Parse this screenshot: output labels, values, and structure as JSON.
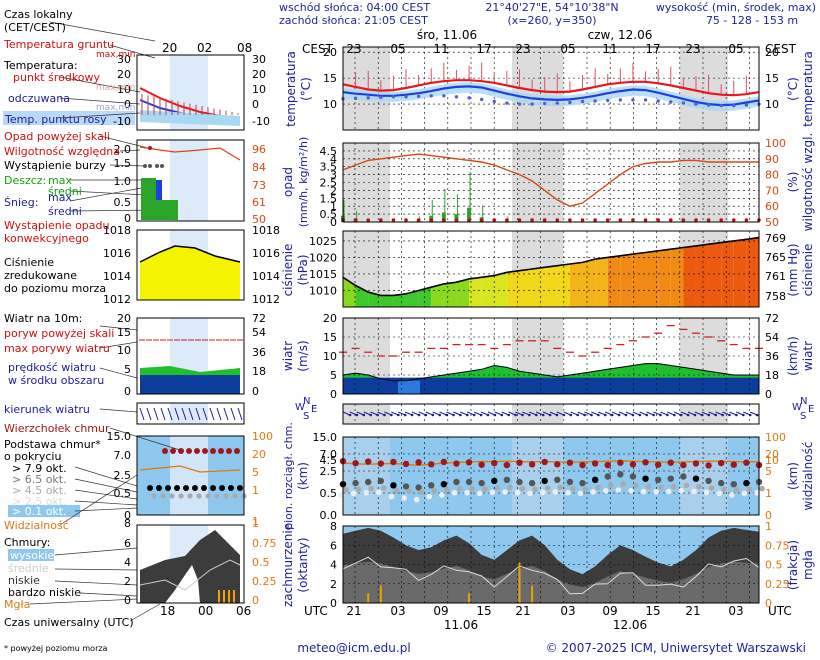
{
  "header": {
    "sunrise": "wschód słońca: 04:00 CEST",
    "sunset": "zachód słońca: 21:05 CEST",
    "coords": "21°40'27\"E, 54°10'38\"N",
    "grid": "(x=260, y=350)",
    "elev_title": "wysokość (min, środek, max)",
    "elev_values": "75 - 128 - 153 m"
  },
  "legend": {
    "local_time": "Czas lokalny",
    "local_time_sub": "(CET/CEST)",
    "soil_temp": "Temperatura gruntu",
    "soil_temp_sub": "max,min",
    "temperature": "Temperatura:",
    "center_point": "punkt środkowy",
    "center_sub": "max,min",
    "perceived": "odczuwana",
    "perceived_sub": "max,min",
    "dew_point": "Temp. punktu rosy",
    "precip_over": "Opad powyżej skali",
    "humidity": "Wilgotność względna",
    "storm": "Wystąpienie burzy",
    "rain": "Deszcz:",
    "rain_max": "max",
    "rain_mean": "średni",
    "snow": "Śnieg:",
    "snow_max": "max",
    "snow_mean": "średni",
    "convective": "Wystąpienie opadu",
    "convective2": "konwekcyjnego",
    "pressure1": "Ciśnienie",
    "pressure2": "zredukowane",
    "pressure3": "do poziomu morza",
    "wind_10m": "Wiatr na 10m:",
    "gust_over": "poryw powyżej skali",
    "max_gust": "max porywy wiatru",
    "wind_speed": "prędkość wiatru",
    "wind_speed2": "w środku obszaru",
    "wind_dir": "kierunek wiatru",
    "cloud_top": "Wierzchołek chmur",
    "cloud_base": "Podstawa chmur*",
    "cloud_base2": "o pokryciu",
    "cov1": "> 7.9 okt.",
    "cov2": "> 6.5 okt.",
    "cov3": "> 4.5 okt.",
    "cov4": "> 2.5 okt.",
    "cov5": "> 0.1 okt.",
    "visibility": "Widzialność",
    "clouds": "Chmury:",
    "high": "wysokie",
    "middle": "średnie",
    "low": "niskie",
    "very_low": "bardzo niskie",
    "fog": "Mgła",
    "utc": "Czas uniwersalny (UTC)",
    "footnote": "* powyżej poziomu morza"
  },
  "labels": {
    "cest": "CEST",
    "utc": "UTC",
    "day1": "śro, 11.06",
    "day2": "czw, 12.06",
    "date1": "11.06",
    "date2": "12.06",
    "temperature": "temperatura",
    "temperature_unit": "(°C)",
    "precip": "opad",
    "precip_unit": "(mm/h, kg/m²/h)",
    "humidity": "wilgotność wzgl.",
    "humidity_unit": "(%)",
    "pressure": "ciśnienie",
    "pressure_unit": "(hPa)",
    "pressure_unit2": "(mm Hg)",
    "wind": "wiatr",
    "wind_unit": "(m/s)",
    "wind_unit2": "(km/h)",
    "cloud_ceiling": "pion. rozciągł. chm.",
    "cloud_km": "(km)",
    "visibility": "widzialność",
    "cloud_cover": "zachmurzenie",
    "cloud_cover_unit": "(oktanty)",
    "fog": "mgła",
    "fog_unit": "(frakcja)",
    "compass_w": "W",
    "compass_n": "N",
    "compass_s": "S",
    "compass_e": "E"
  },
  "footer": {
    "email": "meteo@icm.edu.pl",
    "copyright": "© 2007-2025 ICM, Uniwersytet Warszawski"
  },
  "colors": {
    "temp_red": "#e8171c",
    "temp_blue": "#1f3fe0",
    "dew": "#5a5ad0",
    "humidity": "#d84814",
    "precip_bar": "#2aa52a",
    "pressure_yellow": "#f5f400",
    "wind_green": "#1fbf2e",
    "wind_blue": "#0d3d9c",
    "cloud_dark": "#4a4a4a",
    "sky": "#8fc8ee",
    "night": "#dcdcdc",
    "legend_red": "#d01010",
    "legend_blue": "#1c1c9c",
    "legend_green": "#10a010",
    "legend_orange": "#e07810"
  },
  "chart_data": [
    {
      "type": "line",
      "title": "temperatura",
      "ylabel": "(°C)",
      "x_cest_ticks": [
        "23",
        "05",
        "11",
        "17",
        "23",
        "05",
        "11",
        "17",
        "23",
        "05"
      ],
      "x_utc_ticks": [
        "21",
        "03",
        "09",
        "15",
        "21",
        "03",
        "09",
        "15",
        "21",
        "03"
      ],
      "yticks": [
        10,
        15,
        20
      ],
      "ylim": [
        5,
        21
      ],
      "series": [
        {
          "values": [
            13.8,
            13.3,
            12.8,
            12.6,
            12.7,
            13.1,
            13.6,
            14.1,
            14.4,
            14.6,
            14.6,
            14.4,
            14.1,
            13.6,
            13.1,
            12.7,
            12.4,
            12.3,
            12.4,
            12.8,
            13.3,
            13.8,
            14.1,
            14.3,
            14.3,
            14.0,
            13.6,
            13.1,
            12.6,
            12.1,
            11.8,
            11.7,
            11.9,
            12.3
          ]
        },
        {
          "values": [
            12.3,
            12.0,
            11.8,
            11.6,
            11.6,
            11.8,
            12.1,
            12.5,
            13.0,
            13.3,
            13.4,
            13.2,
            12.6,
            12.0,
            11.5,
            11.1,
            10.9,
            10.8,
            10.9,
            11.2,
            11.6,
            12.1,
            12.5,
            12.8,
            12.7,
            12.2,
            11.6,
            11.0,
            10.4,
            10.0,
            9.8,
            9.9,
            10.3,
            10.7
          ]
        },
        {
          "values": [
            11.0,
            11.1,
            11.2,
            11.3,
            11.4,
            11.4,
            11.5,
            11.6,
            11.6,
            11.4,
            11.2,
            10.9,
            10.5,
            10.2,
            10.0,
            10.0,
            10.1,
            10.2,
            10.3,
            10.5,
            10.6,
            10.7,
            10.8,
            10.8,
            10.8,
            10.6,
            10.4,
            10.2,
            10.0,
            9.8,
            9.7,
            9.7,
            9.8,
            10.0
          ]
        }
      ]
    },
    {
      "type": "bar",
      "title": "opad",
      "ylabel": "(mm/h, kg/m²/h)",
      "yticks": [
        0,
        0.5,
        1,
        1.5,
        2,
        2.5,
        3,
        3.5,
        4,
        4.5
      ],
      "ylim": [
        0,
        5
      ],
      "right_yticks": [
        50,
        60,
        70,
        80,
        90,
        100
      ],
      "series": [
        {
          "values": [
            0.4,
            0.2,
            0.0,
            0.0,
            0.0,
            0.0,
            0.1,
            0.4,
            0.6,
            0.5,
            0.9,
            0.3,
            0.0,
            0.1,
            0.0,
            0.0,
            0.0,
            0.0,
            0.0,
            0.0,
            0.0,
            0.0,
            0.0,
            0.0,
            0.0,
            0.0,
            0.0,
            0.0,
            0.0,
            0.0,
            0.0,
            0.0,
            0.0,
            0.0
          ]
        },
        {
          "values": [
            83,
            86,
            89,
            90,
            91,
            92,
            93,
            92,
            91,
            90,
            89,
            88,
            86,
            83,
            80,
            76,
            70,
            64,
            60,
            62,
            68,
            74,
            80,
            85,
            87,
            88,
            88,
            89,
            89,
            88,
            88,
            88,
            88,
            88
          ]
        }
      ]
    },
    {
      "type": "area",
      "title": "ciśnienie",
      "ylabel": "(hPa)",
      "yticks": [
        1010,
        1015,
        1020,
        1025
      ],
      "ylim": [
        1005,
        1028
      ],
      "right_yticks": [
        758,
        761,
        765,
        769
      ],
      "series": [
        {
          "values": [
            1014.0,
            1011.5,
            1009.5,
            1008.5,
            1008.5,
            1009.0,
            1010.0,
            1011.0,
            1012.0,
            1012.5,
            1013.5,
            1014.0,
            1014.5,
            1015.5,
            1016.0,
            1016.5,
            1017.0,
            1017.5,
            1018.0,
            1018.5,
            1019.5,
            1020.0,
            1020.5,
            1021.0,
            1021.5,
            1022.0,
            1022.5,
            1023.0,
            1023.5,
            1024.0,
            1024.5,
            1025.0,
            1025.5,
            1026.0
          ]
        }
      ]
    },
    {
      "type": "area",
      "title": "wiatr",
      "ylabel": "(m/s)",
      "yticks": [
        0,
        5,
        10,
        15,
        20
      ],
      "ylim": [
        0,
        20
      ],
      "right_yticks": [
        0,
        18,
        36,
        54,
        72
      ],
      "series": [
        {
          "values": [
            5.0,
            5.5,
            5.0,
            4.0,
            3.5,
            3.5,
            4.0,
            4.5,
            5.0,
            5.5,
            6.0,
            6.5,
            7.5,
            7.0,
            6.0,
            5.5,
            5.0,
            4.5,
            5.0,
            5.5,
            6.0,
            6.5,
            7.0,
            7.5,
            8.0,
            8.0,
            7.5,
            7.0,
            6.5,
            6.0,
            5.5,
            5.0,
            5.0,
            5.0
          ]
        },
        {
          "values": [
            11,
            12,
            11,
            10,
            10,
            11,
            11,
            12,
            12,
            13,
            13,
            13,
            12,
            13,
            14,
            14,
            14,
            12,
            11,
            10,
            11,
            12,
            13,
            14,
            15,
            16,
            18,
            17,
            16,
            15,
            14,
            13,
            12,
            12
          ]
        }
      ]
    },
    {
      "type": "scatter",
      "title": "pion. rozciągł. chm.",
      "ylabel": "(km)",
      "yticks": [
        0,
        0.5,
        2.5,
        4.5,
        7.0,
        15.0
      ],
      "right_yticks": [
        0,
        1,
        5,
        10,
        20,
        100
      ],
      "series": [
        {
          "values": [
            5.1,
            5.1,
            5.0,
            5.0,
            4.9,
            4.9,
            4.8,
            4.8,
            4.9,
            5.0,
            4.8,
            4.7,
            4.6,
            4.6,
            4.7,
            4.8,
            4.9,
            4.8,
            4.7,
            4.6,
            4.5,
            4.6,
            4.7,
            4.8,
            4.8,
            4.7,
            4.7,
            4.6,
            4.5,
            4.5,
            4.6,
            4.7,
            4.7,
            4.6
          ]
        },
        {
          "values": [
            1.3,
            1.4,
            1.5,
            1.6,
            1.2,
            1.1,
            1.0,
            1.2,
            1.3,
            1.5,
            1.5,
            1.4,
            1.6,
            1.7,
            1.5,
            1.4,
            1.6,
            1.7,
            1.5,
            1.4,
            1.7,
            2.0,
            2.2,
            2.0,
            1.8,
            1.7,
            1.8,
            2.0,
            1.8,
            1.6,
            1.4,
            1.3,
            1.4,
            1.5
          ]
        }
      ]
    },
    {
      "type": "area",
      "title": "zachmurzenie",
      "ylabel": "(oktanty)",
      "yticks": [
        0,
        2,
        4,
        6,
        8
      ],
      "ylim": [
        0,
        8
      ],
      "right_yticks": [
        0,
        0.25,
        0.5,
        0.75,
        1
      ],
      "series": [
        {
          "values": [
            7.2,
            7.5,
            7.8,
            7.5,
            6.8,
            6.0,
            5.5,
            5.8,
            6.5,
            7.0,
            6.2,
            5.0,
            4.5,
            5.5,
            6.5,
            7.0,
            6.0,
            4.5,
            3.5,
            3.0,
            3.8,
            5.0,
            6.0,
            5.5,
            4.8,
            4.2,
            3.8,
            4.5,
            5.5,
            6.8,
            7.5,
            7.8,
            7.6,
            7.4
          ]
        },
        {
          "values": [
            0,
            0,
            0.1,
            0.2,
            0,
            0,
            0,
            0,
            0,
            0,
            0.1,
            0,
            0,
            0,
            0.5,
            0.2,
            0,
            0,
            0,
            0,
            0,
            0,
            0,
            0,
            0,
            0,
            0,
            0,
            0,
            0,
            0,
            0,
            0,
            0
          ]
        }
      ]
    }
  ]
}
